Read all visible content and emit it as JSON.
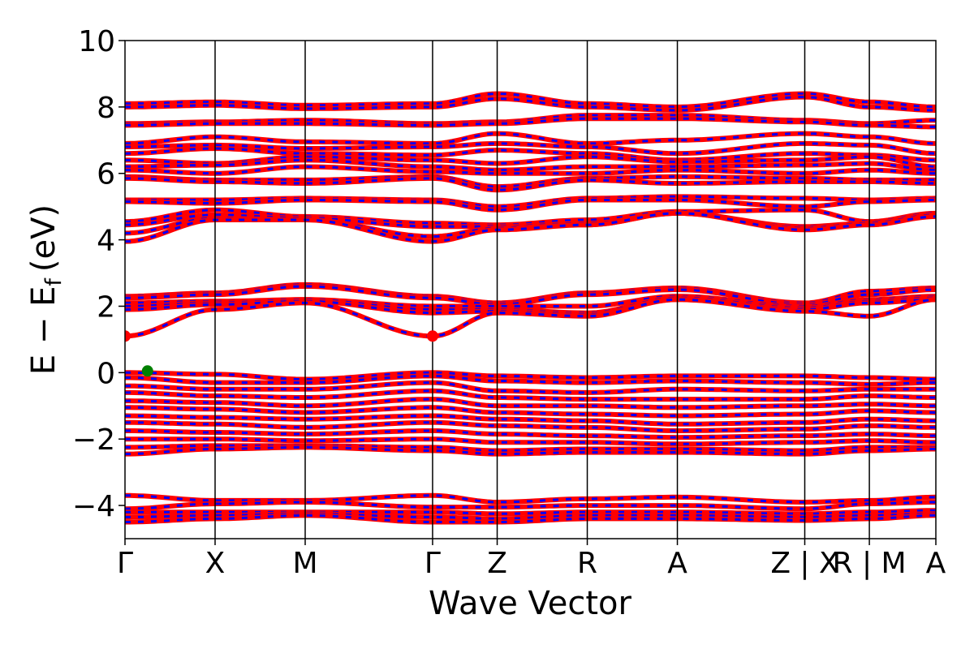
{
  "chart_data": {
    "type": "line",
    "title": "",
    "xlabel": "Wave Vector",
    "ylabel_main": "E − E",
    "ylabel_sub": "f",
    "ylabel_unit": "(eV)",
    "ylim": [
      -5,
      10
    ],
    "xlim": [
      0,
      9
    ],
    "yticks": [
      -4,
      -2,
      0,
      2,
      4,
      6,
      8,
      10
    ],
    "ytick_labels": [
      "−4",
      "−2",
      "0",
      "2",
      "4",
      "6",
      "8",
      "10"
    ],
    "kpath": [
      {
        "label": "Γ",
        "x": 0
      },
      {
        "label": "X",
        "x": 1
      },
      {
        "label": "M",
        "x": 2
      },
      {
        "label": "Γ",
        "x": 3.414
      },
      {
        "label": "Z",
        "x": 4.131
      },
      {
        "label": "R",
        "x": 5.131
      },
      {
        "label": "A",
        "x": 6.131
      },
      {
        "label": "Z | X",
        "x": 7.545
      },
      {
        "label": "R | M",
        "x": 8.262
      },
      {
        "label": "A",
        "x": 9
      }
    ],
    "series_colors": {
      "spin_up": "#ff0000",
      "spin_down": "#0000ff"
    },
    "band_groups": {
      "upper_conduction": [
        {
          "y": [
            8.1,
            8.15,
            8.05,
            8.1,
            8.4,
            8.1,
            8.0,
            8.4,
            8.15,
            8.0
          ]
        },
        {
          "y": [
            8.0,
            8.05,
            7.95,
            8.0,
            8.25,
            8.0,
            7.9,
            8.3,
            8.0,
            7.9
          ]
        },
        {
          "y": [
            7.5,
            7.55,
            7.6,
            7.5,
            7.55,
            7.75,
            7.75,
            7.6,
            7.5,
            7.6
          ]
        },
        {
          "y": [
            7.45,
            7.5,
            7.5,
            7.45,
            7.5,
            7.65,
            7.65,
            7.55,
            7.45,
            7.4
          ]
        },
        {
          "y": [
            6.9,
            7.1,
            6.95,
            6.9,
            7.2,
            6.9,
            7.0,
            7.2,
            7.1,
            6.9
          ]
        },
        {
          "y": [
            6.8,
            6.85,
            6.75,
            6.8,
            6.9,
            6.8,
            6.6,
            6.9,
            6.85,
            6.6
          ]
        },
        {
          "y": [
            6.6,
            6.75,
            6.6,
            6.55,
            6.7,
            6.6,
            6.4,
            6.6,
            6.55,
            6.4
          ]
        },
        {
          "y": [
            6.4,
            6.3,
            6.5,
            6.4,
            6.3,
            6.5,
            6.35,
            6.4,
            6.5,
            6.2
          ]
        },
        {
          "y": [
            6.2,
            6.25,
            6.4,
            6.2,
            6.1,
            6.2,
            6.2,
            6.25,
            6.3,
            6.1
          ]
        },
        {
          "y": [
            6.1,
            6.0,
            6.2,
            6.05,
            6.0,
            6.0,
            6.1,
            6.0,
            6.1,
            6.0
          ]
        },
        {
          "y": [
            5.9,
            5.8,
            5.8,
            5.9,
            5.6,
            5.85,
            5.9,
            5.85,
            5.8,
            5.8
          ]
        },
        {
          "y": [
            5.85,
            5.75,
            5.7,
            5.85,
            5.5,
            5.8,
            5.7,
            5.75,
            5.75,
            5.7
          ]
        },
        {
          "y": [
            5.2,
            5.2,
            5.25,
            5.2,
            5.0,
            5.25,
            5.3,
            5.25,
            5.2,
            5.25
          ]
        },
        {
          "y": [
            5.15,
            5.1,
            5.2,
            5.15,
            4.9,
            5.2,
            5.2,
            5.0,
            5.15,
            5.2
          ]
        },
        {
          "y": [
            4.55,
            4.9,
            4.7,
            4.5,
            4.45,
            4.6,
            4.85,
            4.9,
            4.55,
            4.8
          ]
        },
        {
          "y": [
            4.45,
            4.75,
            4.65,
            4.4,
            4.4,
            4.5,
            4.8,
            4.4,
            4.5,
            4.75
          ]
        },
        {
          "y": [
            4.2,
            4.65,
            4.6,
            4.1,
            4.35,
            4.45,
            4.8,
            4.35,
            4.5,
            4.75
          ]
        },
        {
          "y": [
            3.95,
            4.6,
            4.6,
            3.95,
            4.3,
            4.45,
            4.8,
            4.3,
            4.45,
            4.7
          ]
        }
      ],
      "lower_conduction": [
        {
          "y": [
            2.3,
            2.4,
            2.65,
            2.3,
            2.1,
            2.4,
            2.55,
            2.1,
            2.45,
            2.55
          ]
        },
        {
          "y": [
            2.25,
            2.35,
            2.6,
            2.25,
            2.05,
            2.35,
            2.5,
            2.05,
            2.35,
            2.5
          ]
        },
        {
          "y": [
            2.1,
            2.15,
            2.2,
            2.0,
            2.0,
            2.0,
            2.3,
            2.0,
            2.2,
            2.3
          ]
        },
        {
          "y": [
            2.0,
            2.1,
            2.2,
            1.9,
            1.9,
            1.8,
            2.25,
            1.95,
            2.15,
            2.25
          ]
        },
        {
          "y": [
            1.9,
            2.05,
            2.15,
            1.8,
            1.85,
            1.75,
            2.2,
            1.9,
            2.1,
            2.2
          ]
        },
        {
          "y": [
            1.1,
            1.9,
            2.1,
            1.1,
            1.8,
            1.7,
            2.2,
            1.85,
            1.7,
            2.2
          ]
        }
      ],
      "valence": [
        {
          "y": [
            0.0,
            -0.05,
            -0.2,
            0.0,
            -0.1,
            -0.15,
            -0.1,
            -0.1,
            -0.15,
            -0.2
          ]
        },
        {
          "y": [
            -0.15,
            -0.3,
            -0.3,
            -0.1,
            -0.25,
            -0.3,
            -0.25,
            -0.3,
            -0.35,
            -0.3
          ]
        },
        {
          "y": [
            -0.4,
            -0.5,
            -0.5,
            -0.3,
            -0.55,
            -0.6,
            -0.5,
            -0.55,
            -0.5,
            -0.5
          ]
        },
        {
          "y": [
            -0.6,
            -0.7,
            -0.75,
            -0.55,
            -0.75,
            -0.8,
            -0.8,
            -0.8,
            -0.7,
            -0.75
          ]
        },
        {
          "y": [
            -0.85,
            -0.9,
            -1.0,
            -0.8,
            -1.0,
            -1.0,
            -1.05,
            -1.0,
            -0.95,
            -1.0
          ]
        },
        {
          "y": [
            -1.05,
            -1.1,
            -1.2,
            -1.05,
            -1.2,
            -1.25,
            -1.3,
            -1.25,
            -1.15,
            -1.2
          ]
        },
        {
          "y": [
            -1.3,
            -1.35,
            -1.4,
            -1.3,
            -1.4,
            -1.45,
            -1.55,
            -1.5,
            -1.4,
            -1.45
          ]
        },
        {
          "y": [
            -1.5,
            -1.55,
            -1.65,
            -1.5,
            -1.6,
            -1.65,
            -1.75,
            -1.7,
            -1.6,
            -1.65
          ]
        },
        {
          "y": [
            -1.75,
            -1.8,
            -1.85,
            -1.75,
            -1.85,
            -1.9,
            -1.95,
            -1.9,
            -1.85,
            -1.9
          ]
        },
        {
          "y": [
            -2.0,
            -2.0,
            -2.05,
            -2.0,
            -2.1,
            -2.1,
            -2.15,
            -2.1,
            -2.05,
            -2.1
          ]
        },
        {
          "y": [
            -2.25,
            -2.2,
            -2.2,
            -2.25,
            -2.35,
            -2.3,
            -2.3,
            -2.35,
            -2.25,
            -2.25
          ]
        },
        {
          "y": [
            -2.45,
            -2.3,
            -2.25,
            -2.35,
            -2.45,
            -2.4,
            -2.4,
            -2.45,
            -2.35,
            -2.3
          ]
        }
      ],
      "deep_valence": [
        {
          "y": [
            -3.7,
            -3.85,
            -3.85,
            -3.7,
            -3.9,
            -3.8,
            -3.75,
            -3.9,
            -3.85,
            -3.75
          ]
        },
        {
          "y": [
            -4.1,
            -3.95,
            -3.9,
            -4.05,
            -4.05,
            -4.0,
            -4.0,
            -4.1,
            -3.95,
            -3.9
          ]
        },
        {
          "y": [
            -4.2,
            -4.2,
            -4.2,
            -4.2,
            -4.25,
            -4.2,
            -4.2,
            -4.25,
            -4.2,
            -4.15
          ]
        },
        {
          "y": [
            -4.35,
            -4.3,
            -4.25,
            -4.35,
            -4.4,
            -4.3,
            -4.3,
            -4.35,
            -4.3,
            -4.25
          ]
        },
        {
          "y": [
            -4.5,
            -4.4,
            -4.3,
            -4.5,
            -4.5,
            -4.4,
            -4.4,
            -4.45,
            -4.4,
            -4.3
          ]
        }
      ]
    },
    "markers": [
      {
        "name": "CBM",
        "x": 0,
        "y": 1.1,
        "color": "#ff0000"
      },
      {
        "name": "CBM",
        "x": 3.414,
        "y": 1.1,
        "color": "#ff0000"
      },
      {
        "name": "VBM",
        "x": 0.25,
        "y": 0.05,
        "color": "#008000"
      }
    ]
  }
}
